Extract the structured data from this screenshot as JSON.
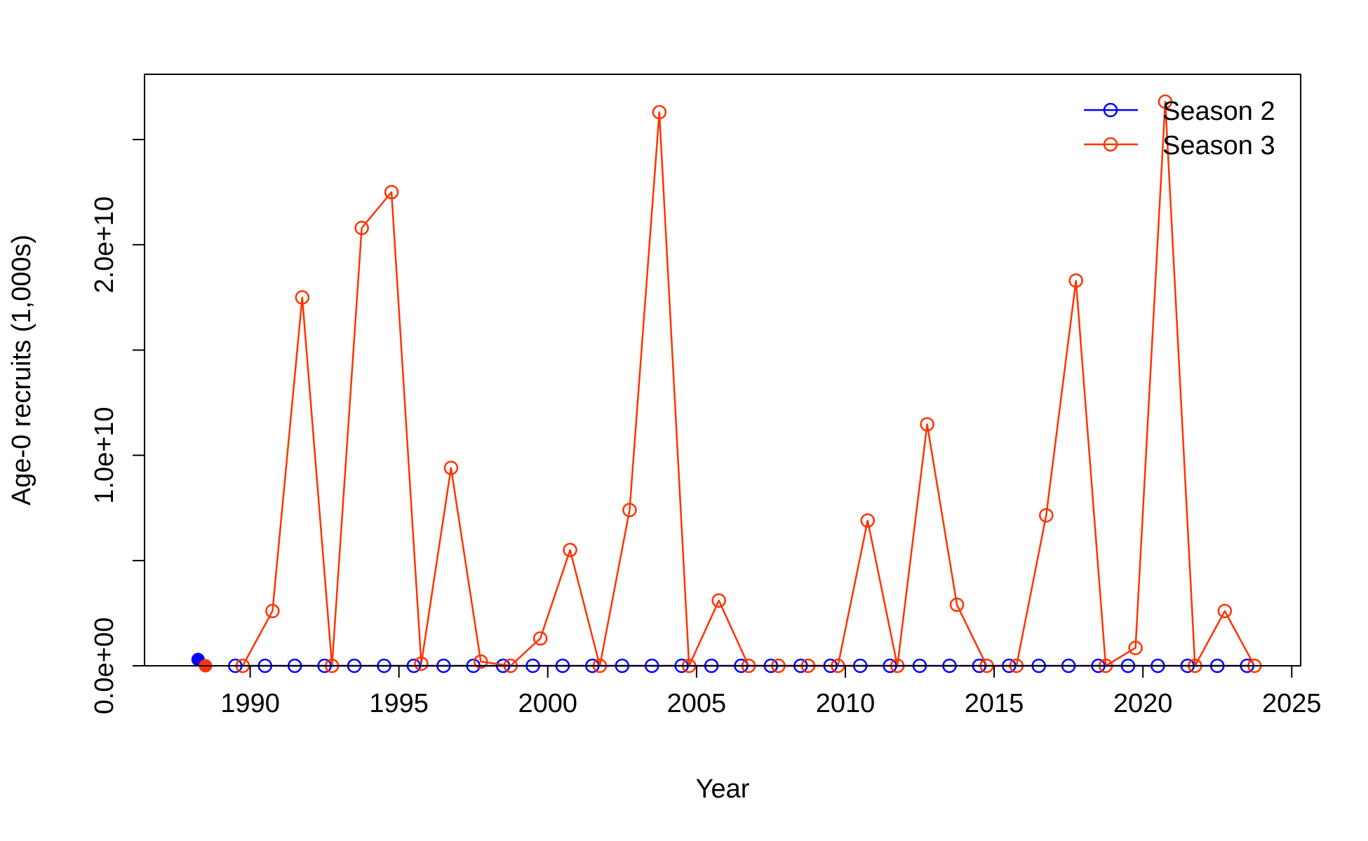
{
  "colors": {
    "season2": "#0000FF",
    "season3": "#FF3300",
    "axis": "#000000",
    "background": "#FFFFFF"
  },
  "chart_data": {
    "type": "line",
    "title": "",
    "xlabel": "Year",
    "ylabel": "Age-0 recruits (1,000s)",
    "xlim": [
      1986.45,
      2025.3
    ],
    "ylim": [
      0,
      28100000000.0
    ],
    "x_ticks": [
      1990,
      1995,
      2000,
      2005,
      2010,
      2015,
      2020,
      2025
    ],
    "x_tick_labels": [
      "1990",
      "1995",
      "2000",
      "2005",
      "2010",
      "2015",
      "2020",
      "2025"
    ],
    "y_ticks": [
      0,
      5000000000.0,
      10000000000.0,
      15000000000.0,
      20000000000.0,
      25000000000.0
    ],
    "y_tick_labels": [
      "0.0e+00",
      "",
      "1.0e+10",
      "",
      "2.0e+10",
      ""
    ],
    "grid": false,
    "legend_position": "top-right",
    "series": [
      {
        "name": "Season 2",
        "color": "#0000FF",
        "marker": "open-circle",
        "x": [
          1989.5,
          1990.5,
          1991.5,
          1992.5,
          1993.5,
          1994.5,
          1995.5,
          1996.5,
          1997.5,
          1998.5,
          1999.5,
          2000.5,
          2001.5,
          2002.5,
          2003.5,
          2004.5,
          2005.5,
          2006.5,
          2007.5,
          2008.5,
          2009.5,
          2010.5,
          2011.5,
          2012.5,
          2013.5,
          2014.5,
          2015.5,
          2016.5,
          2017.5,
          2018.5,
          2019.5,
          2020.5,
          2021.5,
          2022.5,
          2023.5
        ],
        "y": [
          0,
          0,
          0,
          0,
          0,
          0,
          0,
          0,
          0,
          0,
          0,
          0,
          0,
          0,
          0,
          0,
          0,
          0,
          0,
          0,
          0,
          0,
          0,
          0,
          0,
          0,
          0,
          0,
          0,
          0,
          0,
          0,
          0,
          0,
          0
        ]
      },
      {
        "name": "Season 3",
        "color": "#FF3300",
        "marker": "open-circle",
        "x": [
          1989.75,
          1990.75,
          1991.75,
          1992.75,
          1993.75,
          1994.75,
          1995.75,
          1996.75,
          1997.75,
          1998.75,
          1999.75,
          2000.75,
          2001.75,
          2002.75,
          2003.75,
          2004.75,
          2005.75,
          2006.75,
          2007.75,
          2008.75,
          2009.75,
          2010.75,
          2011.75,
          2012.75,
          2013.75,
          2014.75,
          2015.75,
          2016.75,
          2017.75,
          2018.75,
          2019.75,
          2020.75,
          2021.75,
          2022.75,
          2023.75
        ],
        "y": [
          0,
          2600000000.0,
          17500000000.0,
          0,
          20800000000.0,
          22500000000.0,
          100000000.0,
          9400000000.0,
          200000000.0,
          0,
          1300000000.0,
          5500000000.0,
          0,
          7400000000.0,
          26300000000.0,
          0,
          3100000000.0,
          0,
          0,
          0,
          0,
          6900000000.0,
          0,
          11470000000.0,
          2900000000.0,
          0,
          0,
          7150000000.0,
          18300000000.0,
          0,
          850000000.0,
          26800000000.0,
          0,
          2600000000.0,
          0
        ]
      }
    ],
    "initial_points": [
      {
        "series": "Season 2",
        "x": 1988.25,
        "y": 300000000.0,
        "color": "#0000FF",
        "marker": "filled-circle"
      },
      {
        "series": "Season 3",
        "x": 1988.5,
        "y": 0,
        "color": "#FF3300",
        "marker": "filled-circle"
      }
    ]
  }
}
